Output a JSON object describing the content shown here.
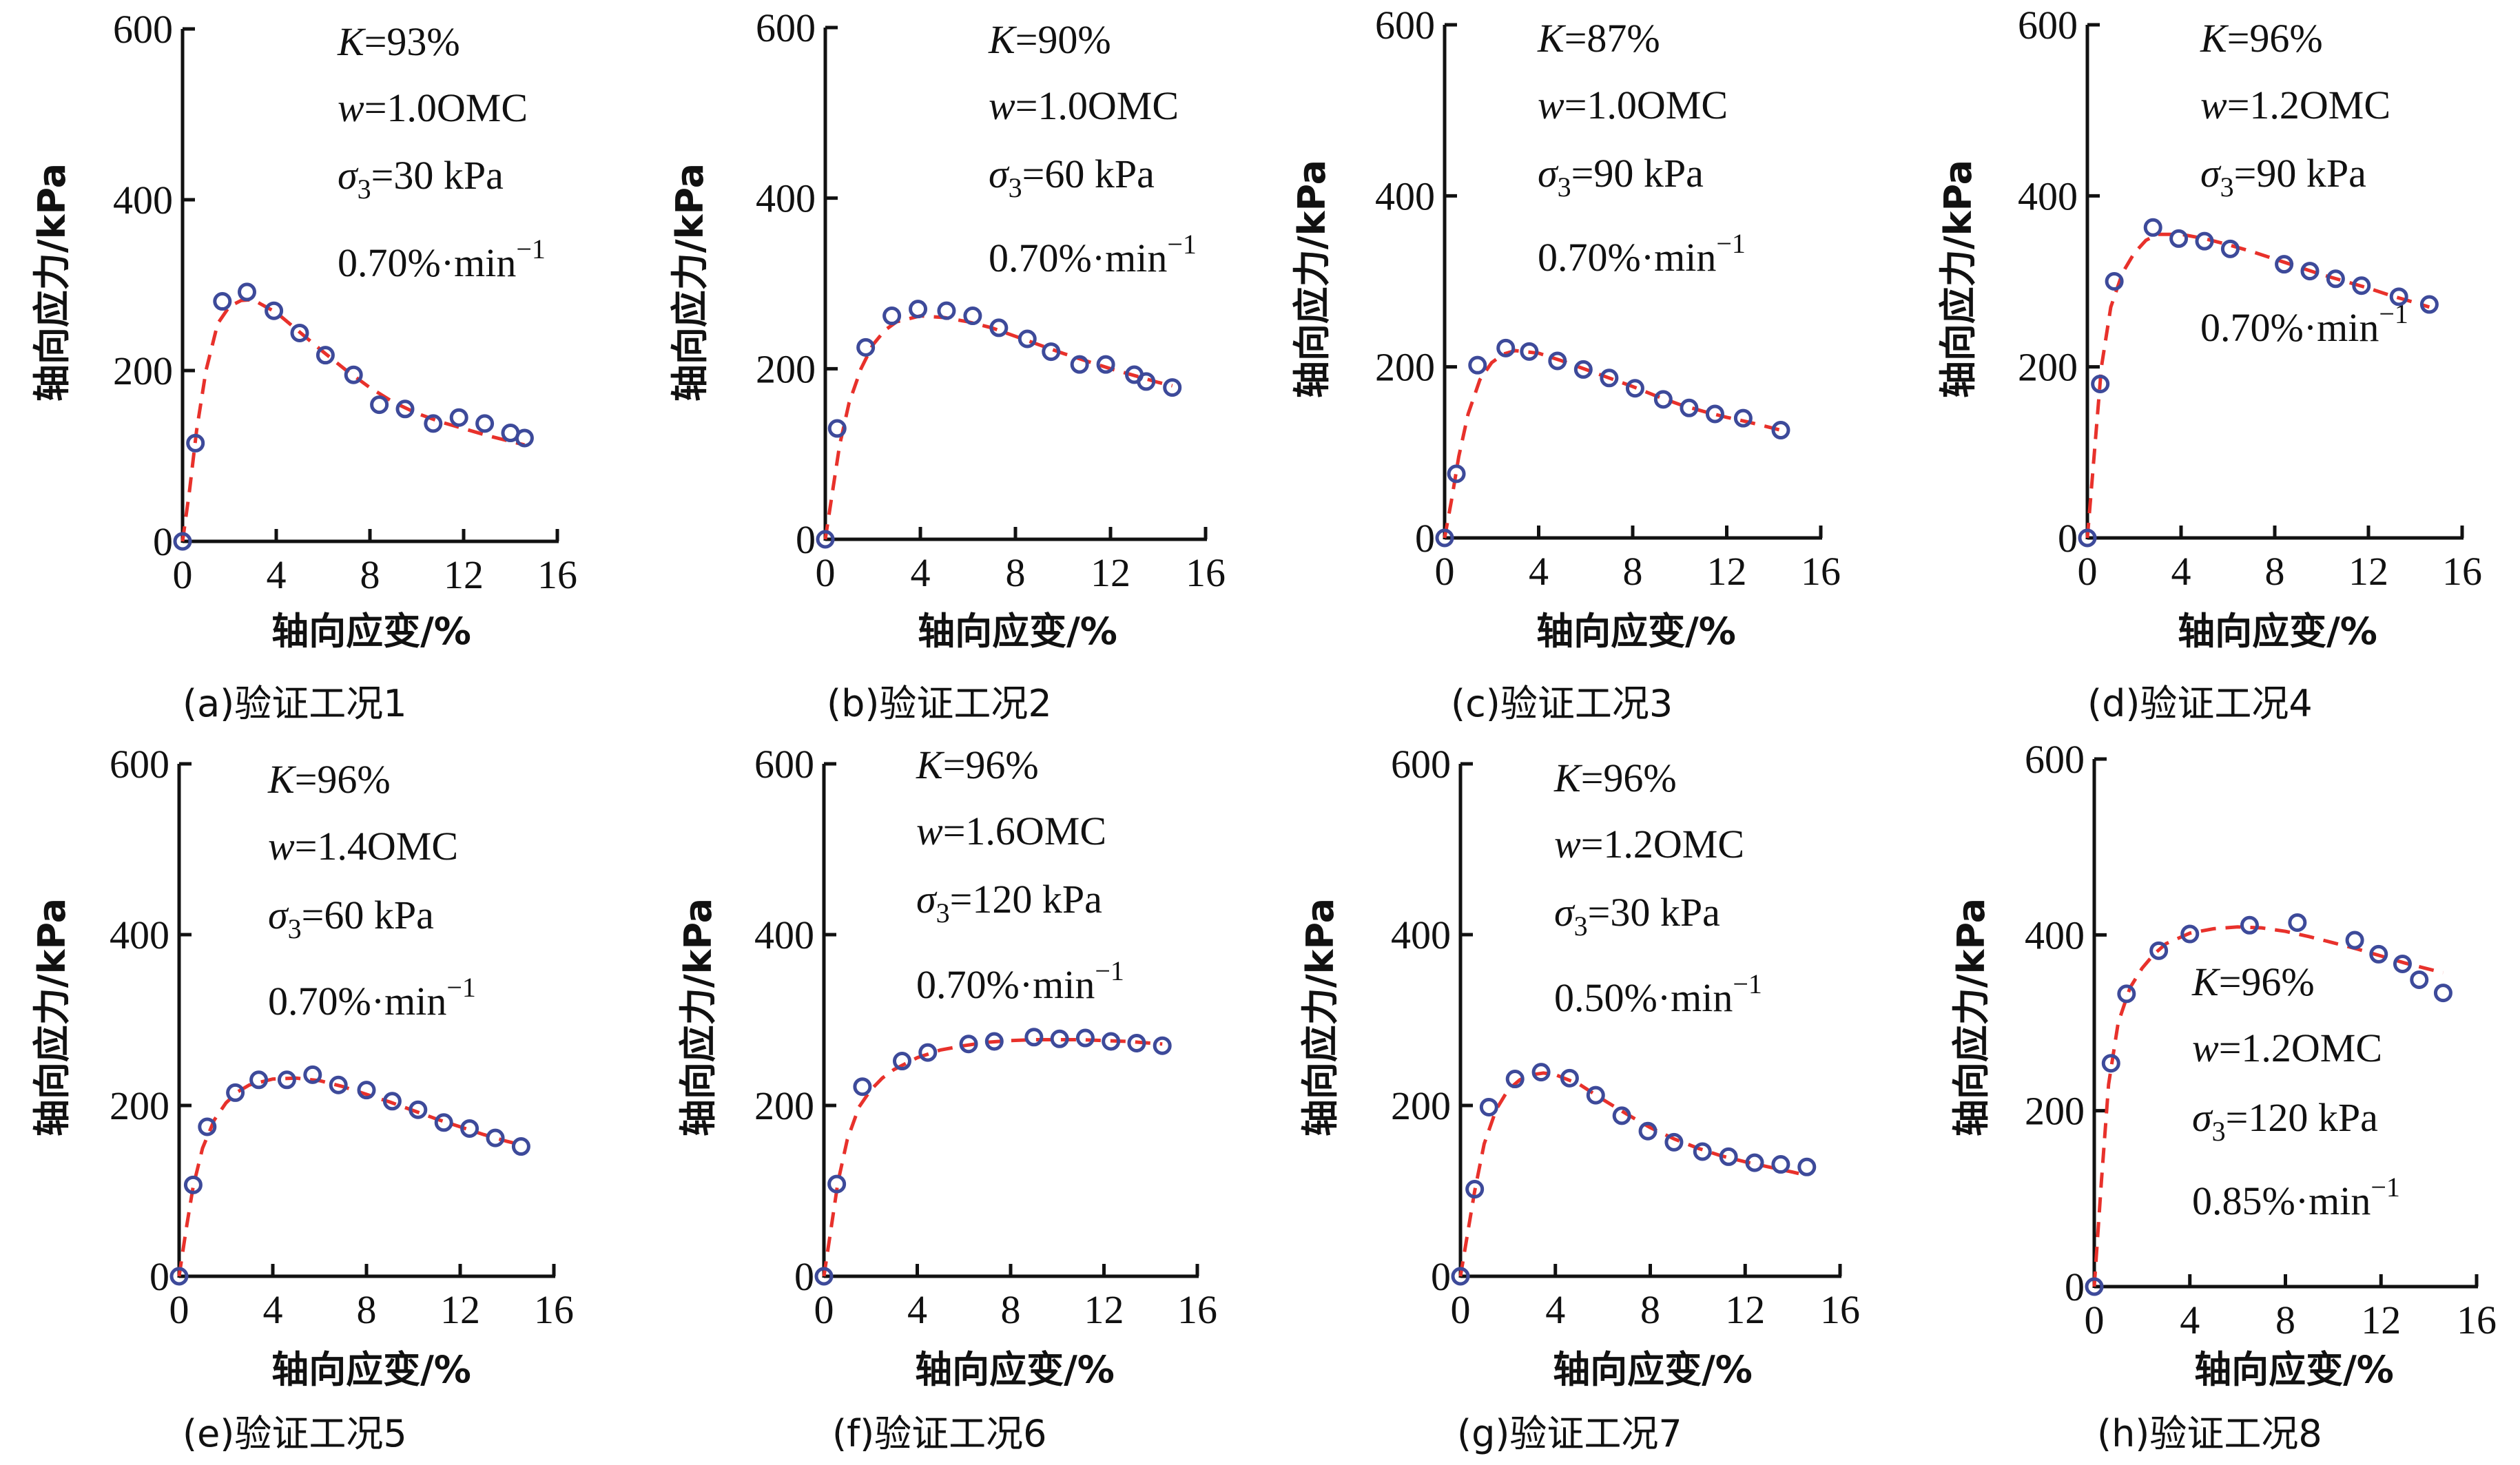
{
  "colors": {
    "measured": "#3d4a9a",
    "fitted": "#e8312b",
    "axis": "#111111"
  },
  "chart_data": [
    {
      "id": "a",
      "type": "scatter+line",
      "caption": "(a)验证工况1",
      "xlabel": "轴向应变/%",
      "ylabel": "轴向应力/kPa",
      "xlim": [
        0,
        16
      ],
      "ylim": [
        0,
        600
      ],
      "xticks": [
        "0",
        "4",
        "8",
        "12",
        "16"
      ],
      "yticks": [
        "0",
        "200",
        "400",
        "600"
      ],
      "annotations": {
        "K": "K",
        "K_val": "=93%",
        "w": "w",
        "w_val": "=1.0OMC",
        "sigma": "σ",
        "sigma_sub": "3",
        "sigma_val": "=30 kPa",
        "rate": "0.70%·min",
        "rate_exp": "−1"
      },
      "measured": {
        "x": [
          0,
          0.55,
          1.7,
          2.75,
          3.9,
          5.0,
          6.1,
          7.3,
          8.4,
          9.5,
          10.7,
          11.8,
          12.9,
          14.0,
          14.6
        ],
        "y": [
          0,
          115,
          281,
          292,
          270,
          244,
          218,
          195,
          160,
          155,
          138,
          145,
          138,
          127,
          121
        ]
      },
      "fitted": {
        "x": [
          0,
          0.3,
          0.6,
          1.0,
          1.5,
          2.0,
          2.5,
          3.0,
          4.0,
          5.0,
          6.0,
          7.0,
          8.0,
          9.0,
          10.0,
          11.0,
          12.0,
          13.0,
          14.0,
          14.6
        ],
        "y": [
          0,
          60,
          130,
          200,
          255,
          275,
          282,
          283,
          268,
          245,
          222,
          200,
          180,
          163,
          150,
          140,
          132,
          124,
          117,
          113
        ]
      }
    },
    {
      "id": "b",
      "type": "scatter+line",
      "caption": "(b)验证工况2",
      "xlabel": "轴向应变/%",
      "ylabel": "轴向应力/kPa",
      "xlim": [
        0,
        16
      ],
      "ylim": [
        0,
        600
      ],
      "xticks": [
        "0",
        "4",
        "8",
        "12",
        "16"
      ],
      "yticks": [
        "0",
        "200",
        "400",
        "600"
      ],
      "annotations": {
        "K": "K",
        "K_val": "=90%",
        "w": "w",
        "w_val": "=1.0OMC",
        "sigma": "σ",
        "sigma_sub": "3",
        "sigma_val": "=60 kPa",
        "rate": "0.70%·min",
        "rate_exp": "−1"
      },
      "measured": {
        "x": [
          0,
          0.5,
          1.7,
          2.8,
          3.9,
          5.1,
          6.2,
          7.3,
          8.5,
          9.5,
          10.7,
          11.8,
          13.0,
          13.5,
          14.6
        ],
        "y": [
          0,
          130,
          225,
          262,
          270,
          268,
          262,
          248,
          235,
          220,
          205,
          205,
          193,
          185,
          178
        ]
      },
      "fitted": {
        "x": [
          0,
          0.3,
          0.6,
          1.0,
          1.5,
          2.0,
          2.5,
          3.0,
          4.0,
          5.0,
          6.0,
          7.0,
          8.0,
          9.0,
          10.0,
          11.0,
          12.0,
          13.0,
          14.0,
          14.6
        ],
        "y": [
          0,
          55,
          110,
          160,
          200,
          228,
          245,
          255,
          262,
          260,
          255,
          248,
          238,
          228,
          218,
          209,
          200,
          192,
          184,
          180
        ]
      }
    },
    {
      "id": "c",
      "type": "scatter+line",
      "caption": "(c)验证工况3",
      "xlabel": "轴向应变/%",
      "ylabel": "轴向应力/kPa",
      "xlim": [
        0,
        16
      ],
      "ylim": [
        0,
        600
      ],
      "xticks": [
        "0",
        "4",
        "8",
        "12",
        "16"
      ],
      "yticks": [
        "0",
        "200",
        "400",
        "600"
      ],
      "annotations": {
        "K": "K",
        "K_val": "=87%",
        "w": "w",
        "w_val": "=1.0OMC",
        "sigma": "σ",
        "sigma_sub": "3",
        "sigma_val": "=90 kPa",
        "rate": "0.70%·min",
        "rate_exp": "−1"
      },
      "measured": {
        "x": [
          0,
          0.5,
          1.4,
          2.6,
          3.6,
          4.8,
          5.9,
          7.0,
          8.1,
          9.3,
          10.4,
          11.5,
          12.7,
          14.3
        ],
        "y": [
          0,
          75,
          202,
          222,
          218,
          207,
          197,
          187,
          175,
          162,
          152,
          145,
          140,
          126
        ]
      },
      "fitted": {
        "x": [
          0,
          0.3,
          0.6,
          1.0,
          1.5,
          2.0,
          2.5,
          3.0,
          4.0,
          5.0,
          6.0,
          7.0,
          8.0,
          9.0,
          10.0,
          11.0,
          12.0,
          13.0,
          14.3
        ],
        "y": [
          0,
          45,
          95,
          145,
          185,
          205,
          215,
          219,
          216,
          207,
          197,
          187,
          177,
          166,
          156,
          148,
          141,
          135,
          126
        ]
      }
    },
    {
      "id": "d",
      "type": "scatter+line",
      "caption": "(d)验证工况4",
      "xlabel": "轴向应变/%",
      "ylabel": "轴向应力/kPa",
      "xlim": [
        0,
        16
      ],
      "ylim": [
        0,
        600
      ],
      "xticks": [
        "0",
        "4",
        "8",
        "12",
        "16"
      ],
      "yticks": [
        "0",
        "200",
        "400",
        "600"
      ],
      "annotations": {
        "K": "K",
        "K_val": "=96%",
        "w": "w",
        "w_val": "=1.2OMC",
        "sigma": "σ",
        "sigma_sub": "3",
        "sigma_val": "=90 kPa",
        "rate": "0.70%·min",
        "rate_exp": "−1"
      },
      "measured": {
        "x": [
          0,
          0.55,
          1.15,
          2.8,
          3.9,
          5.0,
          6.1,
          8.4,
          9.5,
          10.6,
          11.7,
          13.3,
          14.6
        ],
        "y": [
          0,
          180,
          300,
          363,
          350,
          347,
          338,
          320,
          312,
          303,
          295,
          282,
          273
        ]
      },
      "fitted": {
        "x": [
          0,
          0.3,
          0.6,
          1.0,
          1.5,
          2.0,
          2.5,
          3.0,
          4.0,
          5.0,
          6.0,
          7.0,
          8.0,
          9.0,
          10.0,
          11.0,
          12.0,
          13.0,
          14.0,
          14.6
        ],
        "y": [
          0,
          100,
          200,
          270,
          310,
          333,
          348,
          355,
          355,
          350,
          343,
          335,
          326,
          317,
          308,
          300,
          292,
          283,
          275,
          270
        ]
      }
    },
    {
      "id": "e",
      "type": "scatter+line",
      "caption": "(e)验证工况5",
      "xlabel": "轴向应变/%",
      "ylabel": "轴向应力/kPa",
      "xlim": [
        0,
        16
      ],
      "ylim": [
        0,
        600
      ],
      "xticks": [
        "0",
        "4",
        "8",
        "12",
        "16"
      ],
      "yticks": [
        "0",
        "200",
        "400",
        "600"
      ],
      "annotations": {
        "K": "K",
        "K_val": "=96%",
        "w": "w",
        "w_val": "=1.4OMC",
        "sigma": "σ",
        "sigma_sub": "3",
        "sigma_val": "=60 kPa",
        "rate": "0.70%·min",
        "rate_exp": "−1"
      },
      "measured": {
        "x": [
          0,
          0.6,
          1.2,
          2.4,
          3.4,
          4.6,
          5.7,
          6.8,
          8.0,
          9.1,
          10.2,
          11.3,
          12.4,
          13.5,
          14.6
        ],
        "y": [
          0,
          107,
          175,
          215,
          230,
          230,
          236,
          224,
          218,
          205,
          195,
          180,
          173,
          162,
          152
        ]
      },
      "fitted": {
        "x": [
          0,
          0.3,
          0.6,
          1.0,
          1.5,
          2.0,
          2.5,
          3.0,
          4.0,
          5.0,
          6.0,
          7.0,
          8.0,
          9.0,
          10.0,
          11.0,
          12.0,
          13.0,
          14.0,
          14.6
        ],
        "y": [
          0,
          55,
          105,
          150,
          183,
          203,
          216,
          224,
          231,
          232,
          229,
          222,
          213,
          204,
          194,
          184,
          175,
          166,
          158,
          154
        ]
      }
    },
    {
      "id": "f",
      "type": "scatter+line",
      "caption": "(f)验证工况6",
      "xlabel": "轴向应变/%",
      "ylabel": "轴向应力/kPa",
      "xlim": [
        0,
        16
      ],
      "ylim": [
        0,
        600
      ],
      "xticks": [
        "0",
        "4",
        "8",
        "12",
        "16"
      ],
      "yticks": [
        "0",
        "200",
        "400",
        "600"
      ],
      "annotations": {
        "K": "K",
        "K_val": "=96%",
        "w": "w",
        "w_val": "=1.6OMC",
        "sigma": "σ",
        "sigma_sub": "3",
        "sigma_val": "=120 kPa",
        "rate": "0.70%·min",
        "rate_exp": "−1"
      },
      "measured": {
        "x": [
          0,
          0.55,
          1.65,
          3.35,
          4.45,
          6.2,
          7.3,
          9.0,
          10.1,
          11.2,
          12.3,
          13.4,
          14.5
        ],
        "y": [
          0,
          108,
          222,
          252,
          262,
          272,
          275,
          280,
          278,
          279,
          275,
          273,
          270
        ]
      },
      "fitted": {
        "x": [
          0,
          0.3,
          0.6,
          1.0,
          1.5,
          2.0,
          2.5,
          3.0,
          4.0,
          5.0,
          6.0,
          7.0,
          8.0,
          9.0,
          10.0,
          11.0,
          12.0,
          13.0,
          14.0,
          14.5
        ],
        "y": [
          0,
          55,
          110,
          160,
          198,
          218,
          232,
          242,
          256,
          265,
          270,
          274,
          276,
          277,
          277,
          277,
          276,
          275,
          273,
          272
        ]
      }
    },
    {
      "id": "g",
      "type": "scatter+line",
      "caption": "(g)验证工况7",
      "xlabel": "轴向应变/%",
      "ylabel": "轴向应力/kPa",
      "xlim": [
        0,
        16
      ],
      "ylim": [
        0,
        600
      ],
      "xticks": [
        "0",
        "4",
        "8",
        "12",
        "16"
      ],
      "yticks": [
        "0",
        "200",
        "400",
        "600"
      ],
      "annotations": {
        "K": "K",
        "K_val": "=96%",
        "w": "w",
        "w_val": "=1.2OMC",
        "sigma": "σ",
        "sigma_sub": "3",
        "sigma_val": "=30 kPa",
        "rate": "0.50%·min",
        "rate_exp": "−1"
      },
      "measured": {
        "x": [
          0,
          0.6,
          1.2,
          2.3,
          3.4,
          4.6,
          5.7,
          6.8,
          7.9,
          9.0,
          10.2,
          11.3,
          12.4,
          13.5,
          14.6
        ],
        "y": [
          0,
          102,
          198,
          231,
          239,
          232,
          212,
          188,
          170,
          157,
          146,
          140,
          133,
          131,
          128
        ]
      },
      "fitted": {
        "x": [
          0,
          0.3,
          0.6,
          1.0,
          1.5,
          2.0,
          2.5,
          3.0,
          3.5,
          4.0,
          5.0,
          6.0,
          7.0,
          8.0,
          9.0,
          10.0,
          11.0,
          12.0,
          13.0,
          14.0,
          14.6
        ],
        "y": [
          0,
          50,
          100,
          155,
          195,
          218,
          230,
          236,
          238,
          236,
          225,
          207,
          190,
          174,
          161,
          150,
          141,
          134,
          128,
          122,
          118
        ]
      }
    },
    {
      "id": "h",
      "type": "scatter+line",
      "caption": "(h)验证工况8",
      "xlabel": "轴向应变/%",
      "ylabel": "轴向应力/kPa",
      "xlim": [
        0,
        16
      ],
      "ylim": [
        0,
        600
      ],
      "xticks": [
        "0",
        "4",
        "8",
        "12",
        "16"
      ],
      "yticks": [
        "0",
        "200",
        "400",
        "600"
      ],
      "annotations": {
        "K": "K",
        "K_val": "=96%",
        "w": "w",
        "w_val": "=1.2OMC",
        "sigma": "σ",
        "sigma_sub": "3",
        "sigma_val": "=120 kPa",
        "rate": "0.85%·min",
        "rate_exp": "−1"
      },
      "measured": {
        "x": [
          0,
          0.7,
          1.35,
          2.7,
          4.0,
          6.5,
          8.5,
          10.9,
          11.9,
          12.9,
          13.6,
          14.6
        ],
        "y": [
          0,
          254,
          333,
          382,
          401,
          411,
          414,
          394,
          378,
          367,
          349,
          334
        ]
      },
      "fitted": {
        "x": [
          0,
          0.3,
          0.6,
          1.0,
          1.5,
          2.0,
          2.5,
          3.0,
          4.0,
          5.0,
          6.0,
          7.0,
          8.0,
          9.0,
          10.0,
          11.0,
          12.0,
          13.0,
          14.0,
          14.6
        ],
        "y": [
          0,
          120,
          230,
          300,
          340,
          362,
          378,
          390,
          402,
          407,
          409,
          408,
          404,
          398,
          391,
          384,
          376,
          368,
          361,
          357
        ]
      }
    }
  ]
}
